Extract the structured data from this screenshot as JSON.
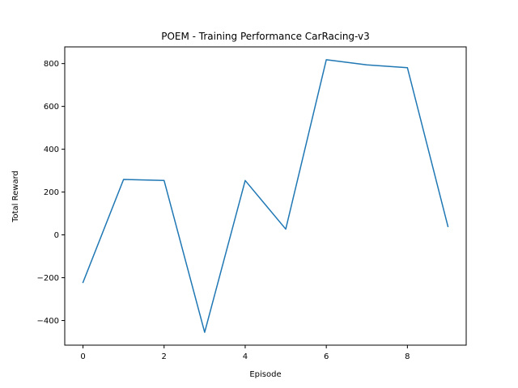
{
  "chart_data": {
    "type": "line",
    "title": "POEM - Training Performance CarRacing-v3",
    "xlabel": "Episode",
    "ylabel": "Total Reward",
    "xlim": [
      -0.45,
      9.45
    ],
    "ylim": [
      -515,
      878
    ],
    "grid": false,
    "x_ticks": [
      0,
      2,
      4,
      6,
      8
    ],
    "x_tick_labels": [
      "0",
      "2",
      "4",
      "6",
      "8"
    ],
    "y_ticks": [
      -400,
      -200,
      0,
      200,
      400,
      600,
      800
    ],
    "y_tick_labels": [
      "−400",
      "−200",
      "0",
      "200",
      "400",
      "600",
      "800"
    ],
    "series": [
      {
        "color": "#1f77b4",
        "x": [
          0,
          1,
          2,
          3,
          4,
          5,
          6,
          7,
          8,
          9
        ],
        "y": [
          -222,
          259,
          254,
          -455,
          254,
          27,
          818,
          794,
          781,
          39
        ]
      }
    ]
  }
}
